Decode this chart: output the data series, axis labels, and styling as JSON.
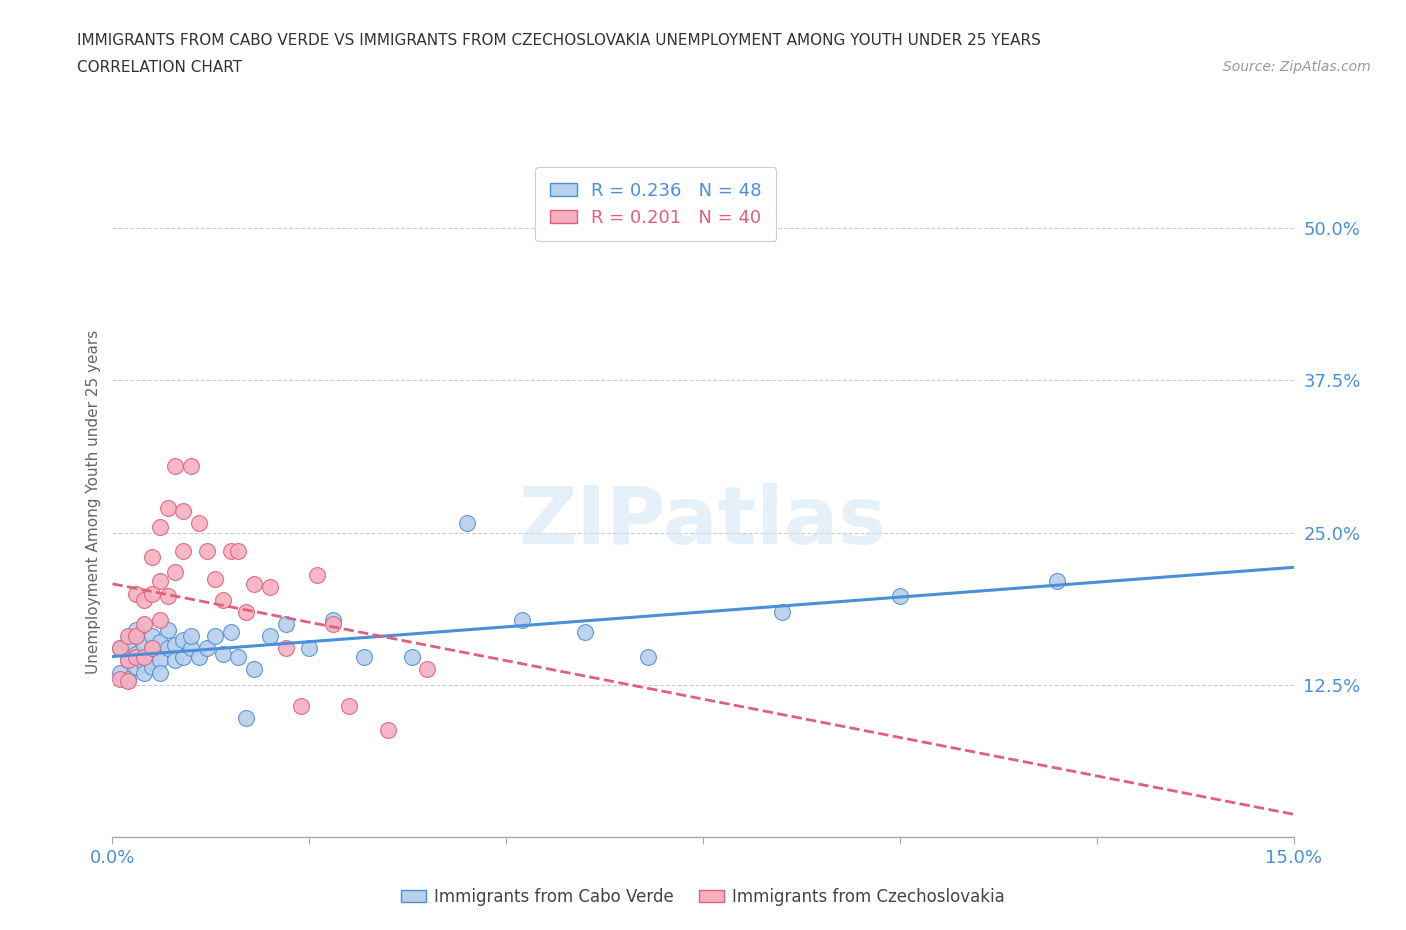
{
  "title_line1": "IMMIGRANTS FROM CABO VERDE VS IMMIGRANTS FROM CZECHOSLOVAKIA UNEMPLOYMENT AMONG YOUTH UNDER 25 YEARS",
  "title_line2": "CORRELATION CHART",
  "source_text": "Source: ZipAtlas.com",
  "ylabel": "Unemployment Among Youth under 25 years",
  "xlim": [
    0.0,
    0.15
  ],
  "ylim": [
    0.0,
    0.55
  ],
  "yticks": [
    0.0,
    0.125,
    0.25,
    0.375,
    0.5
  ],
  "ytick_labels": [
    "",
    "12.5%",
    "25.0%",
    "37.5%",
    "50.0%"
  ],
  "xticks": [
    0.0,
    0.025,
    0.05,
    0.075,
    0.1,
    0.125,
    0.15
  ],
  "xtick_labels": [
    "0.0%",
    "",
    "",
    "",
    "",
    "",
    "15.0%"
  ],
  "cabo_verde_R": 0.236,
  "cabo_verde_N": 48,
  "czech_R": 0.201,
  "czech_N": 40,
  "cabo_verde_color": "#b8d0ea",
  "czech_color": "#f5b0c0",
  "cabo_verde_line_color": "#4a90d9",
  "czech_line_color": "#e0607a",
  "watermark": "ZIPatlas",
  "cabo_verde_x": [
    0.001,
    0.001,
    0.002,
    0.002,
    0.002,
    0.003,
    0.003,
    0.003,
    0.003,
    0.004,
    0.004,
    0.004,
    0.005,
    0.005,
    0.005,
    0.005,
    0.006,
    0.006,
    0.006,
    0.007,
    0.007,
    0.008,
    0.008,
    0.009,
    0.009,
    0.01,
    0.01,
    0.011,
    0.012,
    0.013,
    0.014,
    0.015,
    0.016,
    0.017,
    0.018,
    0.02,
    0.022,
    0.025,
    0.028,
    0.032,
    0.038,
    0.045,
    0.052,
    0.06,
    0.068,
    0.085,
    0.1,
    0.12
  ],
  "cabo_verde_y": [
    0.155,
    0.135,
    0.16,
    0.145,
    0.13,
    0.165,
    0.15,
    0.14,
    0.17,
    0.158,
    0.142,
    0.135,
    0.165,
    0.15,
    0.14,
    0.155,
    0.16,
    0.145,
    0.135,
    0.155,
    0.17,
    0.158,
    0.145,
    0.162,
    0.148,
    0.155,
    0.165,
    0.148,
    0.155,
    0.165,
    0.15,
    0.168,
    0.148,
    0.098,
    0.138,
    0.165,
    0.175,
    0.155,
    0.178,
    0.148,
    0.148,
    0.258,
    0.178,
    0.168,
    0.148,
    0.185,
    0.198,
    0.21
  ],
  "czech_x": [
    0.001,
    0.001,
    0.002,
    0.002,
    0.002,
    0.003,
    0.003,
    0.003,
    0.004,
    0.004,
    0.004,
    0.005,
    0.005,
    0.005,
    0.006,
    0.006,
    0.006,
    0.007,
    0.007,
    0.008,
    0.008,
    0.009,
    0.009,
    0.01,
    0.011,
    0.012,
    0.013,
    0.014,
    0.015,
    0.016,
    0.017,
    0.018,
    0.02,
    0.022,
    0.024,
    0.026,
    0.028,
    0.03,
    0.035,
    0.04
  ],
  "czech_y": [
    0.155,
    0.13,
    0.165,
    0.145,
    0.128,
    0.2,
    0.165,
    0.148,
    0.195,
    0.175,
    0.148,
    0.23,
    0.2,
    0.155,
    0.255,
    0.21,
    0.178,
    0.27,
    0.198,
    0.305,
    0.218,
    0.268,
    0.235,
    0.305,
    0.258,
    0.235,
    0.212,
    0.195,
    0.235,
    0.235,
    0.185,
    0.208,
    0.205,
    0.155,
    0.108,
    0.215,
    0.175,
    0.108,
    0.088,
    0.138
  ]
}
